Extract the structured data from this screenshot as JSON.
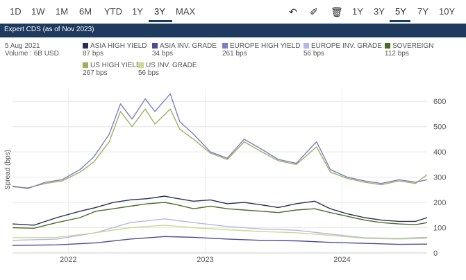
{
  "toolbar": {
    "left_ranges": [
      "1D",
      "1W",
      "1M",
      "6M",
      "YTD",
      "1Y",
      "3Y",
      "MAX"
    ],
    "left_active": "3Y",
    "right_ranges": [
      "1Y",
      "3Y",
      "5Y",
      "7Y",
      "10Y"
    ],
    "right_active": "5Y",
    "icons": [
      "undo-icon",
      "magnet-icon",
      "trash-icon"
    ]
  },
  "banner": {
    "title": "Expert CDS (as of Nov 2023)"
  },
  "info": {
    "date": "5 Aug 2021",
    "volume": "Volume : 6B USD"
  },
  "chart_data": {
    "type": "line",
    "ylabel": "Spread (bps)",
    "ylim": [
      0,
      650
    ],
    "yticks": [
      0,
      100,
      200,
      300,
      400,
      500,
      600
    ],
    "xticks": [
      {
        "label": "2022",
        "x": "2022-01-01"
      },
      {
        "label": "2023",
        "x": "2023-01-01"
      },
      {
        "label": "2024",
        "x": "2024-01-01"
      }
    ],
    "xlim": [
      "2021-08-05",
      "2024-08-15"
    ],
    "grid": true,
    "legend": "top",
    "series": [
      {
        "name": "ASIA HIGH YIELD",
        "value_label": "87 bps",
        "color": "#2b2d55",
        "x": [
          "2021-08-05",
          "2021-10-01",
          "2021-12-01",
          "2022-02-01",
          "2022-03-15",
          "2022-05-01",
          "2022-06-15",
          "2022-08-01",
          "2022-09-15",
          "2022-10-20",
          "2022-12-01",
          "2023-01-15",
          "2023-03-01",
          "2023-04-15",
          "2023-06-01",
          "2023-07-15",
          "2023-09-01",
          "2023-10-20",
          "2023-12-01",
          "2024-01-15",
          "2024-03-01",
          "2024-04-15",
          "2024-06-01",
          "2024-07-15",
          "2024-08-15"
        ],
        "y": [
          115,
          110,
          140,
          165,
          180,
          200,
          210,
          215,
          225,
          215,
          205,
          210,
          195,
          200,
          190,
          180,
          195,
          205,
          175,
          155,
          140,
          130,
          125,
          125,
          140
        ]
      },
      {
        "name": "ASIA INV. GRADE",
        "value_label": "34 bps",
        "color": "#4b4b9a",
        "x": [
          "2021-08-05",
          "2021-12-01",
          "2022-03-15",
          "2022-06-15",
          "2022-09-15",
          "2022-12-01",
          "2023-03-01",
          "2023-06-01",
          "2023-09-01",
          "2023-12-01",
          "2024-03-01",
          "2024-06-01",
          "2024-08-15"
        ],
        "y": [
          30,
          32,
          40,
          55,
          65,
          62,
          55,
          50,
          48,
          42,
          38,
          34,
          35
        ]
      },
      {
        "name": "EUROPE HIGH YIELD",
        "value_label": "261 bps",
        "color": "#7a7ec8",
        "x": [
          "2021-08-05",
          "2021-09-15",
          "2021-11-01",
          "2021-12-15",
          "2022-02-01",
          "2022-03-10",
          "2022-04-20",
          "2022-05-20",
          "2022-06-20",
          "2022-07-25",
          "2022-08-20",
          "2022-09-30",
          "2022-10-25",
          "2022-12-01",
          "2023-01-15",
          "2023-03-01",
          "2023-04-15",
          "2023-06-01",
          "2023-07-15",
          "2023-09-01",
          "2023-10-25",
          "2023-12-01",
          "2024-01-15",
          "2024-03-01",
          "2024-04-15",
          "2024-06-01",
          "2024-07-15",
          "2024-08-15"
        ],
        "y": [
          265,
          255,
          280,
          290,
          330,
          380,
          470,
          590,
          530,
          610,
          560,
          630,
          520,
          470,
          400,
          375,
          450,
          410,
          370,
          355,
          440,
          330,
          300,
          285,
          275,
          290,
          280,
          290
        ]
      },
      {
        "name": "EUROPE INV. GRADE",
        "value_label": "56 bps",
        "color": "#b3b6e6",
        "x": [
          "2021-08-05",
          "2021-12-01",
          "2022-03-15",
          "2022-06-15",
          "2022-09-15",
          "2022-12-01",
          "2023-03-01",
          "2023-06-01",
          "2023-09-01",
          "2023-12-01",
          "2024-03-01",
          "2024-06-01",
          "2024-08-15"
        ],
        "y": [
          50,
          55,
          80,
          120,
          135,
          120,
          105,
          95,
          90,
          75,
          60,
          58,
          62
        ]
      },
      {
        "name": "SOVEREIGN",
        "value_label": "112 bps",
        "color": "#4a6b2a",
        "x": [
          "2021-08-05",
          "2021-10-01",
          "2021-12-01",
          "2022-02-01",
          "2022-03-15",
          "2022-05-01",
          "2022-06-15",
          "2022-08-01",
          "2022-09-15",
          "2022-10-20",
          "2022-12-01",
          "2023-01-15",
          "2023-03-01",
          "2023-04-15",
          "2023-06-01",
          "2023-07-15",
          "2023-09-01",
          "2023-10-20",
          "2023-12-01",
          "2024-01-15",
          "2024-03-01",
          "2024-04-15",
          "2024-06-01",
          "2024-07-15",
          "2024-08-15"
        ],
        "y": [
          100,
          98,
          120,
          140,
          165,
          175,
          185,
          195,
          200,
          190,
          175,
          185,
          175,
          170,
          165,
          160,
          170,
          175,
          160,
          145,
          130,
          120,
          115,
          112,
          120
        ]
      },
      {
        "name": "US HIGH YIELD",
        "value_label": "267 bps",
        "color": "#9fb05a",
        "x": [
          "2021-08-05",
          "2021-09-15",
          "2021-11-01",
          "2021-12-15",
          "2022-02-01",
          "2022-03-10",
          "2022-04-20",
          "2022-05-20",
          "2022-06-20",
          "2022-07-25",
          "2022-08-20",
          "2022-09-30",
          "2022-10-25",
          "2022-12-01",
          "2023-01-15",
          "2023-03-01",
          "2023-04-15",
          "2023-06-01",
          "2023-07-15",
          "2023-09-01",
          "2023-10-25",
          "2023-12-01",
          "2024-01-15",
          "2024-03-01",
          "2024-04-15",
          "2024-06-01",
          "2024-07-15",
          "2024-08-15"
        ],
        "y": [
          262,
          258,
          275,
          285,
          320,
          360,
          440,
          560,
          500,
          570,
          510,
          570,
          490,
          450,
          395,
          370,
          440,
          400,
          365,
          350,
          420,
          320,
          295,
          280,
          270,
          285,
          275,
          310
        ]
      },
      {
        "name": "US INV. GRADE",
        "value_label": "56 bps",
        "color": "#c9d98f",
        "x": [
          "2021-08-05",
          "2021-12-01",
          "2022-03-15",
          "2022-06-15",
          "2022-09-15",
          "2022-12-01",
          "2023-03-01",
          "2023-06-01",
          "2023-09-01",
          "2023-12-01",
          "2024-03-01",
          "2024-06-01",
          "2024-08-15"
        ],
        "y": [
          60,
          62,
          80,
          100,
          110,
          100,
          92,
          85,
          80,
          70,
          58,
          55,
          58
        ]
      }
    ]
  }
}
